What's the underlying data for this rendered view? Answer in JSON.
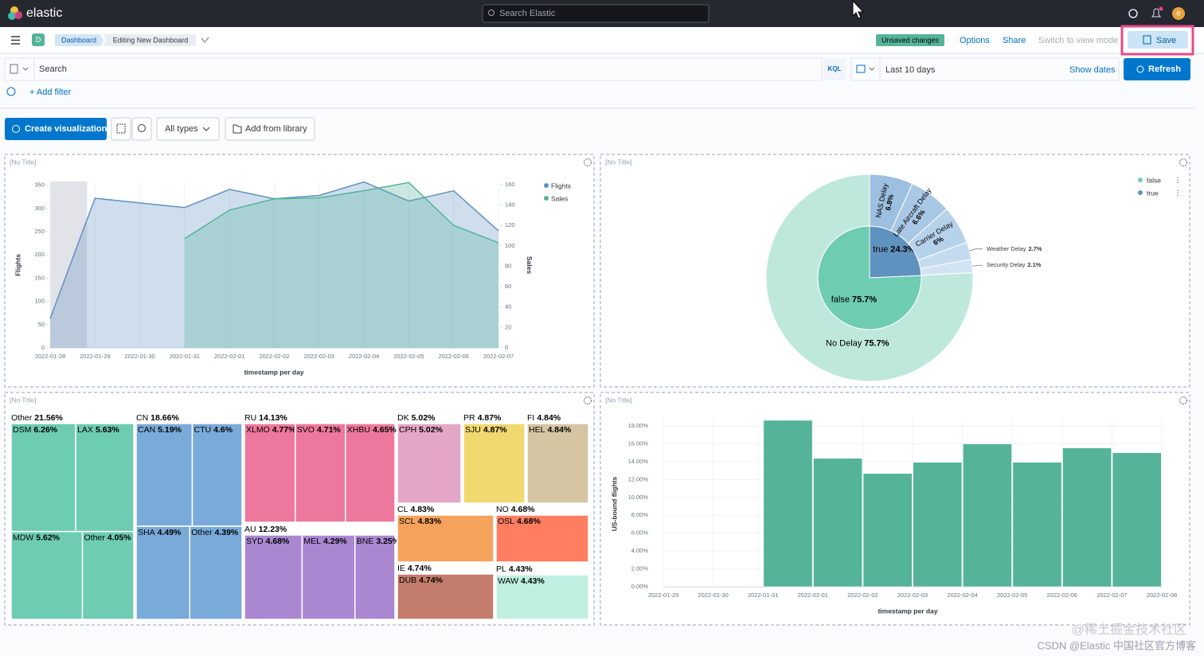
{
  "header": {
    "logo": "elastic",
    "search_placeholder": "Search Elastic",
    "avatar": "e"
  },
  "nav": {
    "space": "D",
    "breadcrumbs": [
      "Dashboard",
      "Editing New Dashboard"
    ],
    "badge": "Unsaved changes",
    "links": [
      "Options",
      "Share",
      "Switch to view mode"
    ],
    "save": "Save"
  },
  "query": {
    "placeholder": "Search",
    "language": "KQL",
    "time_range": "Last 10 days",
    "show_dates": "Show dates",
    "refresh": "Refresh",
    "add_filter": "+ Add filter"
  },
  "toolbar": {
    "create": "Create visualization",
    "types": "All types",
    "library": "Add from library"
  },
  "panels": [
    {
      "title": "[No Title]",
      "chart": {
        "type": "area",
        "xlabel": "timestamp per day",
        "ylabel": "Flights",
        "y2label": "Sales",
        "categories": [
          "2022-01-28",
          "2022-01-29",
          "2022-01-30",
          "2022-01-31",
          "2022-02-01",
          "2022-02-02",
          "2022-02-03",
          "2022-02-04",
          "2022-02-05",
          "2022-02-06",
          "2022-02-07"
        ],
        "series": [
          {
            "name": "Flights",
            "color": "#6092c0",
            "values": [
              63,
              322,
              312,
              302,
              341,
              321,
              328,
              357,
              316,
              338,
              252
            ]
          },
          {
            "name": "Sales",
            "color": "#54b399",
            "axis": "y2",
            "values": [
              null,
              null,
              null,
              107,
              135,
              146,
              147,
              154,
              162,
              120,
              103
            ]
          }
        ],
        "ylim": [
          0,
          358
        ],
        "yticks": [
          0,
          50,
          100,
          150,
          200,
          250,
          300,
          350
        ],
        "y2lim": [
          0,
          163
        ],
        "y2ticks": [
          0,
          20,
          40,
          60,
          80,
          100,
          120,
          140,
          160
        ],
        "legend": "right"
      }
    },
    {
      "title": "[No Title]",
      "chart": {
        "type": "donut",
        "legend": "right",
        "rings": [
          {
            "categories": [
              "true",
              "false"
            ],
            "values": [
              24.3,
              75.7
            ],
            "value_labels": [
              "24.3%",
              "75.7%"
            ],
            "colors": [
              "#6092c0",
              "#6dccb1"
            ]
          },
          {
            "categories": [
              "NAS Delay",
              "Late Aircraft Delay",
              "Carrier Delay",
              "Weather Delay",
              "Security Delay",
              "No Delay"
            ],
            "values": [
              6.8,
              6.6,
              6,
              2.7,
              2.1,
              75.7
            ],
            "value_labels": [
              "6.8%",
              "6.6%",
              "6%",
              "2.7%",
              "2.1%",
              "75.7%"
            ],
            "colors": [
              "#9dbfe0",
              "#a9c8e5",
              "#b6d1ea",
              "#c4dbef",
              "#d2e4f4",
              "#bfe8dc"
            ]
          }
        ]
      }
    },
    {
      "title": "[No Title]",
      "chart": {
        "type": "treemap",
        "groups": [
          {
            "name": "Other",
            "value": 21.56,
            "value_label": "21.56%",
            "color": "#6dccb1",
            "children": [
              {
                "name": "DSM",
                "value": 6.26,
                "value_label": "6.26%"
              },
              {
                "name": "LAX",
                "value": 5.63,
                "value_label": "5.63%"
              },
              {
                "name": "MDW",
                "value": 5.62,
                "value_label": "5.62%"
              },
              {
                "name": "Other",
                "value": 4.05,
                "value_label": "4.05%"
              }
            ]
          },
          {
            "name": "CN",
            "value": 18.66,
            "value_label": "18.66%",
            "color": "#79aad9",
            "children": [
              {
                "name": "CAN",
                "value": 5.19,
                "value_label": "5.19%"
              },
              {
                "name": "CTU",
                "value": 4.6,
                "value_label": "4.6%"
              },
              {
                "name": "SHA",
                "value": 4.49,
                "value_label": "4.49%"
              },
              {
                "name": "Other",
                "value": 4.39,
                "value_label": "4.39%"
              }
            ]
          },
          {
            "name": "RU",
            "value": 14.13,
            "value_label": "14.13%",
            "color": "#ee789d",
            "children": [
              {
                "name": "XLMO",
                "value": 4.77,
                "value_label": "4.77%"
              },
              {
                "name": "SVO",
                "value": 4.71,
                "value_label": "4.71%"
              },
              {
                "name": "XHBU",
                "value": 4.65,
                "value_label": "4.65%"
              }
            ]
          },
          {
            "name": "AU",
            "value": 12.23,
            "value_label": "12.23%",
            "color": "#a987d1",
            "children": [
              {
                "name": "SYD",
                "value": 4.68,
                "value_label": "4.68%"
              },
              {
                "name": "MEL",
                "value": 4.29,
                "value_label": "4.29%"
              },
              {
                "name": "BNE",
                "value": 3.25,
                "value_label": "3.25%"
              }
            ]
          },
          {
            "name": "DK",
            "value": 5.02,
            "value_label": "5.02%",
            "color": "#e4a6c7",
            "children": [
              {
                "name": "CPH",
                "value": 5.02,
                "value_label": "5.02%"
              }
            ]
          },
          {
            "name": "PR",
            "value": 4.87,
            "value_label": "4.87%",
            "color": "#f1d86f",
            "children": [
              {
                "name": "SJU",
                "value": 4.87,
                "value_label": "4.87%"
              }
            ]
          },
          {
            "name": "FI",
            "value": 4.84,
            "value_label": "4.84%",
            "color": "#d6c5a3",
            "children": [
              {
                "name": "HEL",
                "value": 4.84,
                "value_label": "4.84%"
              }
            ]
          },
          {
            "name": "CL",
            "value": 4.83,
            "value_label": "4.83%",
            "color": "#f5a35c",
            "children": [
              {
                "name": "SCL",
                "value": 4.83,
                "value_label": "4.83%"
              }
            ]
          },
          {
            "name": "NO",
            "value": 4.68,
            "value_label": "4.68%",
            "color": "#ff7e62",
            "children": [
              {
                "name": "OSL",
                "value": 4.68,
                "value_label": "4.68%"
              }
            ]
          },
          {
            "name": "IE",
            "value": 4.74,
            "value_label": "4.74%",
            "color": "#c47c6c",
            "children": [
              {
                "name": "DUB",
                "value": 4.74,
                "value_label": "4.74%"
              }
            ]
          },
          {
            "name": "PL",
            "value": 4.43,
            "value_label": "4.43%",
            "color": "#bff0e2",
            "children": [
              {
                "name": "WAW",
                "value": 4.43,
                "value_label": "4.43%"
              }
            ]
          }
        ]
      }
    },
    {
      "title": "[No Title]",
      "chart": {
        "type": "bar",
        "xlabel": "timestamp per day",
        "ylabel": "US-bound flights",
        "color": "#54b399",
        "grid": true,
        "categories": [
          "2022-01-29",
          "2022-01-30",
          "2022-01-31",
          "2022-02-01",
          "2022-02-02",
          "2022-02-03",
          "2022-02-04",
          "2022-02-05",
          "2022-02-06",
          "2022-02-07",
          "2022-02-08"
        ],
        "values": [
          null,
          null,
          18.6,
          14.35,
          12.65,
          13.9,
          15.95,
          13.9,
          15.5,
          14.97,
          null
        ],
        "ylim": [
          0,
          18.8
        ],
        "yticks": [
          {
            "value": 0,
            "label": "0.00%"
          },
          {
            "value": 2,
            "label": "2.00%"
          },
          {
            "value": 4,
            "label": "4.00%"
          },
          {
            "value": 6,
            "label": "6.00%"
          },
          {
            "value": 8,
            "label": "8.00%"
          },
          {
            "value": 10,
            "label": "10.00%"
          },
          {
            "value": 12,
            "label": "12.00%"
          },
          {
            "value": 14,
            "label": "14.00%"
          },
          {
            "value": 16,
            "label": "16.00%"
          },
          {
            "value": 18,
            "label": "18.00%"
          }
        ]
      }
    }
  ],
  "watermark": [
    "@稀土掘金技术社区",
    "CSDN @Elastic 中国社区官方博客"
  ]
}
